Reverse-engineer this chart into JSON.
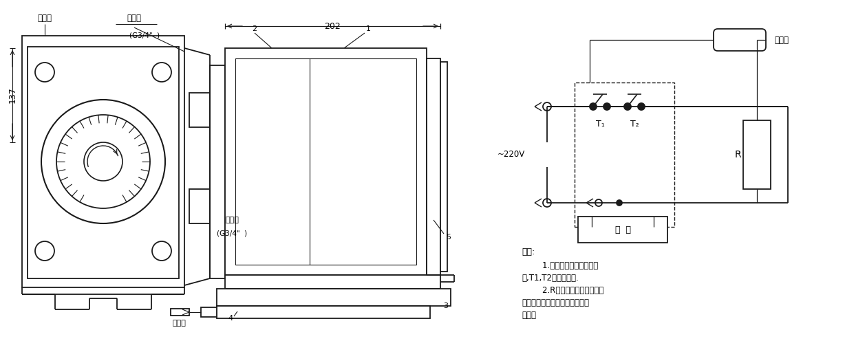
{
  "bg_color": "#ffffff",
  "line_color": "#1a1a1a",
  "labels": {
    "jichu_dian": "基础点",
    "jinxian_dian": "进线点",
    "g3_4_top": "(G3/4\"  )",
    "jie_xian": "接线口",
    "g3_4_bot": "(G3/4\"  )",
    "gan_wen_bao_bot": "感温包",
    "gan_wen_bao_top": "感温包",
    "dim_202": "202",
    "dim_137": "137",
    "num_1": "1",
    "num_2": "2",
    "num_3": "3",
    "num_4": "4",
    "num_5": "5",
    "minus_220v": "~220V",
    "T1": "T₁",
    "T2": "T₂",
    "R": "R",
    "duanjie": "短  接",
    "shuoming": "说明:",
    "note1": "        1.虚线框表示温控器接线",
    "note2": "盒,T1,T2温控器触点.",
    "note3": "        2.R在单相回路中表示电热",
    "note4": "带；在三相回路中表示交流接触",
    "note5": "器线圈"
  }
}
